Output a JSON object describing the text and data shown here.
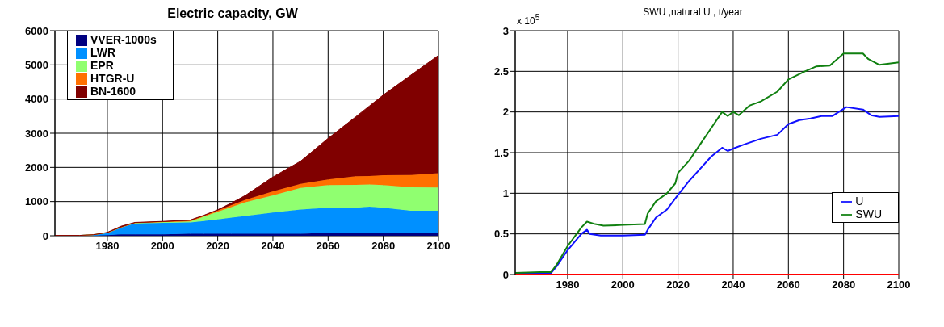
{
  "chart_data": [
    {
      "type": "area",
      "title": "Electric capacity, GW",
      "stacked": true,
      "legend": "top left",
      "grid": true,
      "x": [
        1961,
        1970,
        1975,
        1980,
        1985,
        1990,
        2000,
        2010,
        2015,
        2020,
        2025,
        2030,
        2040,
        2050,
        2060,
        2070,
        2075,
        2080,
        2090,
        2100
      ],
      "xlim": [
        1961,
        2100
      ],
      "xticks": [
        1980,
        2000,
        2020,
        2040,
        2060,
        2080,
        2100
      ],
      "ylim": [
        0,
        6000
      ],
      "yticks": [
        0,
        1000,
        2000,
        3000,
        4000,
        5000,
        6000
      ],
      "series": [
        {
          "name": "VVER-1000s",
          "color": "#000080",
          "values": [
            0,
            0,
            0,
            20,
            40,
            40,
            40,
            60,
            60,
            60,
            60,
            60,
            60,
            60,
            90,
            90,
            90,
            90,
            90,
            90
          ]
        },
        {
          "name": "LWR",
          "color": "#0090ff",
          "values": [
            10,
            10,
            30,
            70,
            210,
            320,
            340,
            330,
            370,
            420,
            470,
            520,
            620,
            710,
            730,
            730,
            760,
            730,
            640,
            640
          ]
        },
        {
          "name": "EPR",
          "color": "#90ff70",
          "values": [
            0,
            0,
            0,
            0,
            0,
            20,
            20,
            30,
            130,
            220,
            310,
            400,
            500,
            630,
            660,
            670,
            650,
            660,
            690,
            680
          ]
        },
        {
          "name": "HTGR-U",
          "color": "#ff7000",
          "values": [
            0,
            0,
            0,
            0,
            0,
            0,
            10,
            20,
            20,
            40,
            60,
            70,
            120,
            120,
            170,
            250,
            250,
            290,
            360,
            420
          ]
        },
        {
          "name": "BN-1600",
          "color": "#800000",
          "values": [
            0,
            0,
            0,
            10,
            30,
            10,
            10,
            20,
            20,
            20,
            60,
            130,
            420,
            660,
            1200,
            1740,
            2050,
            2350,
            2920,
            3450
          ]
        }
      ]
    },
    {
      "type": "line",
      "title": "SWU ,natural U , t/year",
      "annotations": [
        "x 10$^{5}$"
      ],
      "legend": "right",
      "grid": true,
      "xlim": [
        1961,
        2100
      ],
      "xticks": [
        1980,
        2000,
        2020,
        2040,
        2060,
        2080,
        2100
      ],
      "ylim": [
        0,
        3
      ],
      "yticks": [
        0,
        0.5,
        1,
        1.5,
        2,
        2.5,
        3
      ],
      "series": [
        {
          "name": "U",
          "color": "#1010ff",
          "x": [
            1961,
            1970,
            1974,
            1976,
            1980,
            1985,
            1987,
            1988,
            1992,
            2000,
            2008,
            2009,
            2012,
            2016,
            2020,
            2024,
            2028,
            2032,
            2036,
            2038,
            2040,
            2044,
            2050,
            2056,
            2060,
            2064,
            2068,
            2072,
            2076,
            2081,
            2087,
            2090,
            2093,
            2100
          ],
          "values": [
            0.01,
            0.01,
            0.02,
            0.1,
            0.3,
            0.5,
            0.55,
            0.5,
            0.48,
            0.48,
            0.49,
            0.55,
            0.7,
            0.8,
            0.98,
            1.15,
            1.3,
            1.45,
            1.56,
            1.52,
            1.55,
            1.6,
            1.67,
            1.72,
            1.85,
            1.9,
            1.92,
            1.95,
            1.95,
            2.06,
            2.03,
            1.96,
            1.94,
            1.95
          ]
        },
        {
          "name": "SWU",
          "color": "#108010",
          "x": [
            1961,
            1970,
            1974,
            1976,
            1980,
            1985,
            1987,
            1990,
            1993,
            2000,
            2008,
            2009,
            2012,
            2016,
            2019,
            2020,
            2024,
            2028,
            2032,
            2036,
            2038,
            2040,
            2042,
            2046,
            2050,
            2056,
            2060,
            2066,
            2070,
            2075,
            2080,
            2087,
            2089,
            2093,
            2100
          ],
          "values": [
            0.02,
            0.03,
            0.03,
            0.12,
            0.35,
            0.58,
            0.65,
            0.62,
            0.6,
            0.61,
            0.62,
            0.75,
            0.9,
            1.0,
            1.12,
            1.25,
            1.4,
            1.6,
            1.8,
            2.0,
            1.95,
            2.0,
            1.96,
            2.08,
            2.13,
            2.25,
            2.4,
            2.5,
            2.56,
            2.57,
            2.72,
            2.72,
            2.65,
            2.58,
            2.61
          ]
        },
        {
          "color": "#ff0000",
          "x": [
            1961,
            2100
          ],
          "values": [
            0,
            0
          ]
        }
      ]
    }
  ]
}
